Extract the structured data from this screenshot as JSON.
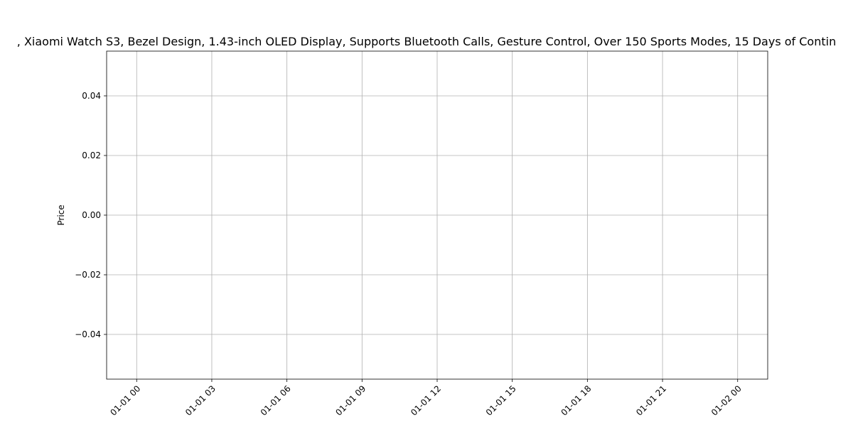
{
  "chart_data": {
    "type": "line",
    "title": "…, Xiaomi Watch S3, Bezel Design, 1.43-inch OLED Display, Supports Bluetooth Calls, Gesture Control, Over 150 Sports Modes, 15 Days of Continu…",
    "title_visible": ", Xiaomi Watch S3, Bezel Design, 1.43-inch OLED Display, Supports Bluetooth Calls, Gesture Control, Over 150 Sports Modes, 15 Days of Contin",
    "xlabel": "",
    "ylabel": "Price",
    "x_axis": "datetime",
    "xlim": [
      "2000-12-31T22:48:00",
      "2001-01-02T01:12:00"
    ],
    "ylim": [
      -0.055,
      0.055
    ],
    "x_ticks": [
      "01-01 00",
      "01-01 03",
      "01-01 06",
      "01-01 09",
      "01-01 12",
      "01-01 15",
      "01-01 18",
      "01-01 21",
      "01-02 00"
    ],
    "y_ticks": [
      "0.04",
      "0.02",
      "0.00",
      "−0.02",
      "−0.04"
    ],
    "y_tick_values": [
      0.04,
      0.02,
      0.0,
      -0.02,
      -0.04
    ],
    "x_tick_rotation_deg": 45,
    "grid": true,
    "legend": "none",
    "series": []
  }
}
